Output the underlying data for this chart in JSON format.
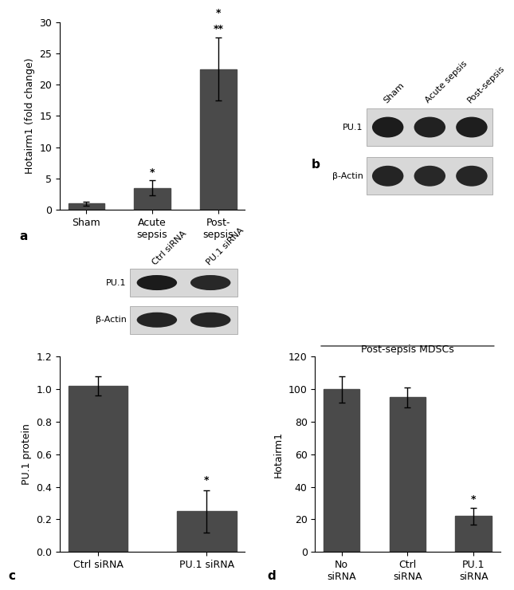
{
  "panel_a": {
    "categories": [
      "Sham",
      "Acute\nsepsis",
      "Post-\nsepsis"
    ],
    "values": [
      1.0,
      3.5,
      22.5
    ],
    "errors": [
      0.3,
      1.2,
      5.0
    ],
    "ylabel": "Hotairm1 (fold change)",
    "ylim": [
      0,
      30
    ],
    "yticks": [
      0,
      5,
      10,
      15,
      20,
      25,
      30
    ],
    "label": "a",
    "bar_color": "#4a4a4a",
    "sig_labels": [
      "",
      "*",
      [
        "**",
        "*"
      ]
    ]
  },
  "panel_b": {
    "label": "b",
    "lane_labels": [
      "Sham",
      "Acute sepsis",
      "Post-sepsis"
    ],
    "row_labels": [
      "PU.1",
      "β-Actin"
    ],
    "band_intensities_pu1": [
      0.88,
      0.8,
      0.85
    ],
    "band_intensities_actin": [
      0.75,
      0.7,
      0.72
    ]
  },
  "panel_c": {
    "categories": [
      "Ctrl siRNA",
      "PU.1 siRNA"
    ],
    "values": [
      1.02,
      0.25
    ],
    "errors": [
      0.06,
      0.13
    ],
    "ylabel": "PU.1 protein",
    "ylim": [
      0,
      1.2
    ],
    "yticks": [
      0,
      0.2,
      0.4,
      0.6,
      0.8,
      1.0,
      1.2
    ],
    "label": "c",
    "bar_color": "#4a4a4a",
    "sig_labels": [
      "",
      "*"
    ],
    "wb_lane_labels": [
      "Ctrl siRNA",
      "PU.1 siRNA"
    ],
    "wb_row_labels": [
      "PU.1",
      "β-Actin"
    ],
    "wb_band_pu1": [
      0.9,
      0.7
    ],
    "wb_band_actin": [
      0.75,
      0.72
    ]
  },
  "panel_d": {
    "categories": [
      "No\nsiRNA",
      "Ctrl\nsiRNA",
      "PU.1\nsiRNA"
    ],
    "values": [
      100,
      95,
      22
    ],
    "errors": [
      8,
      6,
      5
    ],
    "ylabel": "Hotairm1",
    "title": "Post-sepsis MDSCs",
    "ylim": [
      0,
      120
    ],
    "yticks": [
      0,
      20,
      40,
      60,
      80,
      100,
      120
    ],
    "label": "d",
    "bar_color": "#4a4a4a",
    "sig_labels": [
      "",
      "",
      "*"
    ]
  },
  "fig_bg": "#ffffff",
  "text_color": "#000000",
  "font_size": 9
}
